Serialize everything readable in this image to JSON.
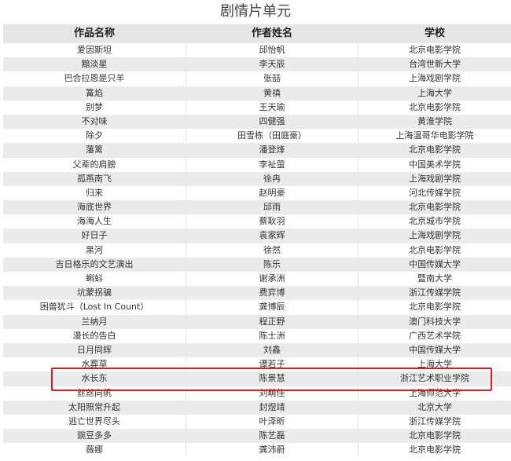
{
  "title": "剧情片单元",
  "columns": [
    "作品名称",
    "作者姓名",
    "学校"
  ],
  "highlight_color": "#e01b1b",
  "highlighted_row": "水长东",
  "rows": [
    [
      "爱因斯坦",
      "邱怡帆",
      "北京电影学院"
    ],
    [
      "黯淡星",
      "李天辰",
      "台湾世新大学"
    ],
    [
      "巴合拉恩是只羊",
      "张喆",
      "上海戏剧学院"
    ],
    [
      "篝焰",
      "黄禛",
      "上海大学"
    ],
    [
      "别梦",
      "王天瑜",
      "北京电影学院"
    ],
    [
      "不对味",
      "四健强",
      "黄淮学院"
    ],
    [
      "除夕",
      "田雪栋（田庭豪）",
      "上海温哥华电影学院"
    ],
    [
      "藩篱",
      "潘登烽",
      "北京电影学院"
    ],
    [
      "父辈的肩膀",
      "李祉萤",
      "中国美术学院"
    ],
    [
      "孤燕南飞",
      "徐冉",
      "上海戏剧学院"
    ],
    [
      "归来",
      "赵明豪",
      "河北传媒学院"
    ],
    [
      "海底世界",
      "邱雨",
      "北京电影学院"
    ],
    [
      "海海人生",
      "蔡耿羽",
      "北京城市学院"
    ],
    [
      "好日子",
      "袁家辉",
      "上海戏剧学院"
    ],
    [
      "黑河",
      "徐然",
      "北京电影学院"
    ],
    [
      "吉日格乐的文艺演出",
      "陈乐",
      "中国传媒大学"
    ],
    [
      "蝌蚪",
      "谢承洲",
      "暨南大学"
    ],
    [
      "坑蒙拐骗",
      "费弈博",
      "浙江传媒学院"
    ],
    [
      "困兽犹斗（Lost In Count）",
      "龚博辰",
      "北京电影学院"
    ],
    [
      "兰纳月",
      "程正野",
      "澳门科技大学"
    ],
    [
      "漫长的告白",
      "陈士洲",
      "广西艺术学院"
    ],
    [
      "日月同辉",
      "刘鑫",
      "中国传媒大学"
    ],
    [
      "水葬草",
      "谭若子",
      "上海大学"
    ],
    [
      "水长东",
      "陈景慧",
      "浙江艺术职业学院"
    ],
    [
      "丝丝向帆",
      "刘萌佳",
      "上海师范大学"
    ],
    [
      "太阳照常升起",
      "封煜靖",
      "北京大学"
    ],
    [
      "逃亡世界尽头",
      "叶泽昕",
      "浙江传媒学院"
    ],
    [
      "豌豆多多",
      "陈艺磊",
      "北京电影学院"
    ],
    [
      "薇娜",
      "龚沛蔚",
      "北京电影学院"
    ]
  ]
}
